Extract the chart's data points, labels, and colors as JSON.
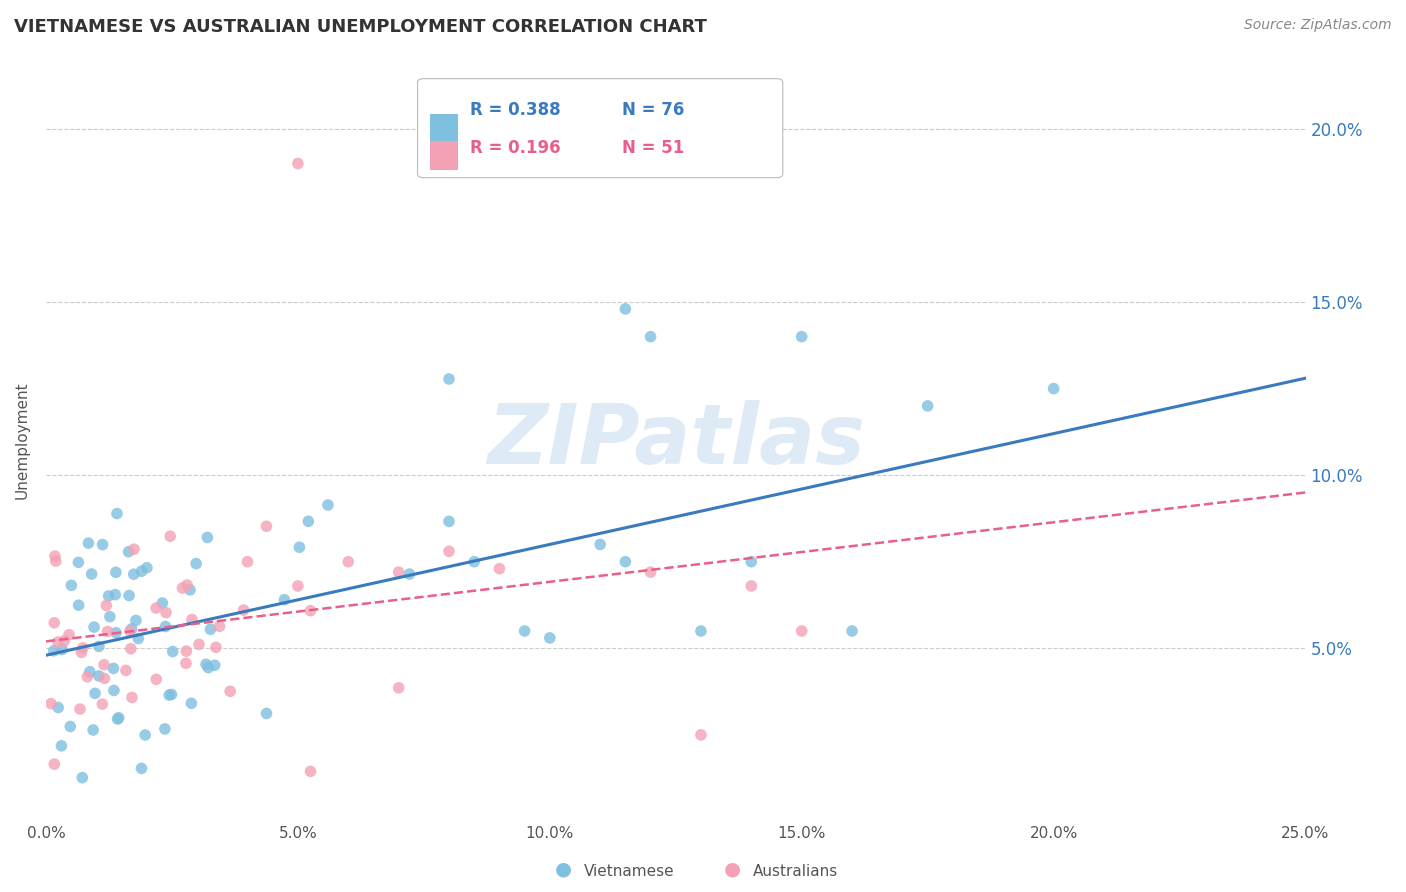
{
  "title": "VIETNAMESE VS AUSTRALIAN UNEMPLOYMENT CORRELATION CHART",
  "source": "Source: ZipAtlas.com",
  "xlabel": "",
  "ylabel": "Unemployment",
  "xlim": [
    0.0,
    0.25
  ],
  "ylim": [
    0.0,
    0.22
  ],
  "xticks": [
    0.0,
    0.05,
    0.1,
    0.15,
    0.2,
    0.25
  ],
  "xticklabels": [
    "0.0%",
    "5.0%",
    "10.0%",
    "15.0%",
    "20.0%",
    "25.0%"
  ],
  "yticks": [
    0.05,
    0.1,
    0.15,
    0.2
  ],
  "yticklabels": [
    "5.0%",
    "10.0%",
    "15.0%",
    "20.0%"
  ],
  "legend_r1": "0.388",
  "legend_n1": "76",
  "legend_r2": "0.196",
  "legend_n2": "51",
  "color_vietnamese": "#7fbfdf",
  "color_australians": "#f4a0b5",
  "color_line_vietnamese": "#3a7abf",
  "color_line_australians": "#e8608a",
  "watermark_color": "#c8dff0",
  "background_color": "#ffffff",
  "grid_color": "#cccccc",
  "title_color": "#333333",
  "source_color": "#888888",
  "axis_color": "#3a7abf",
  "tick_color": "#555555",
  "ylabel_color": "#555555",
  "viet_line_start_y": 0.048,
  "viet_line_end_y": 0.128,
  "aus_line_start_y": 0.052,
  "aus_line_end_y": 0.095
}
